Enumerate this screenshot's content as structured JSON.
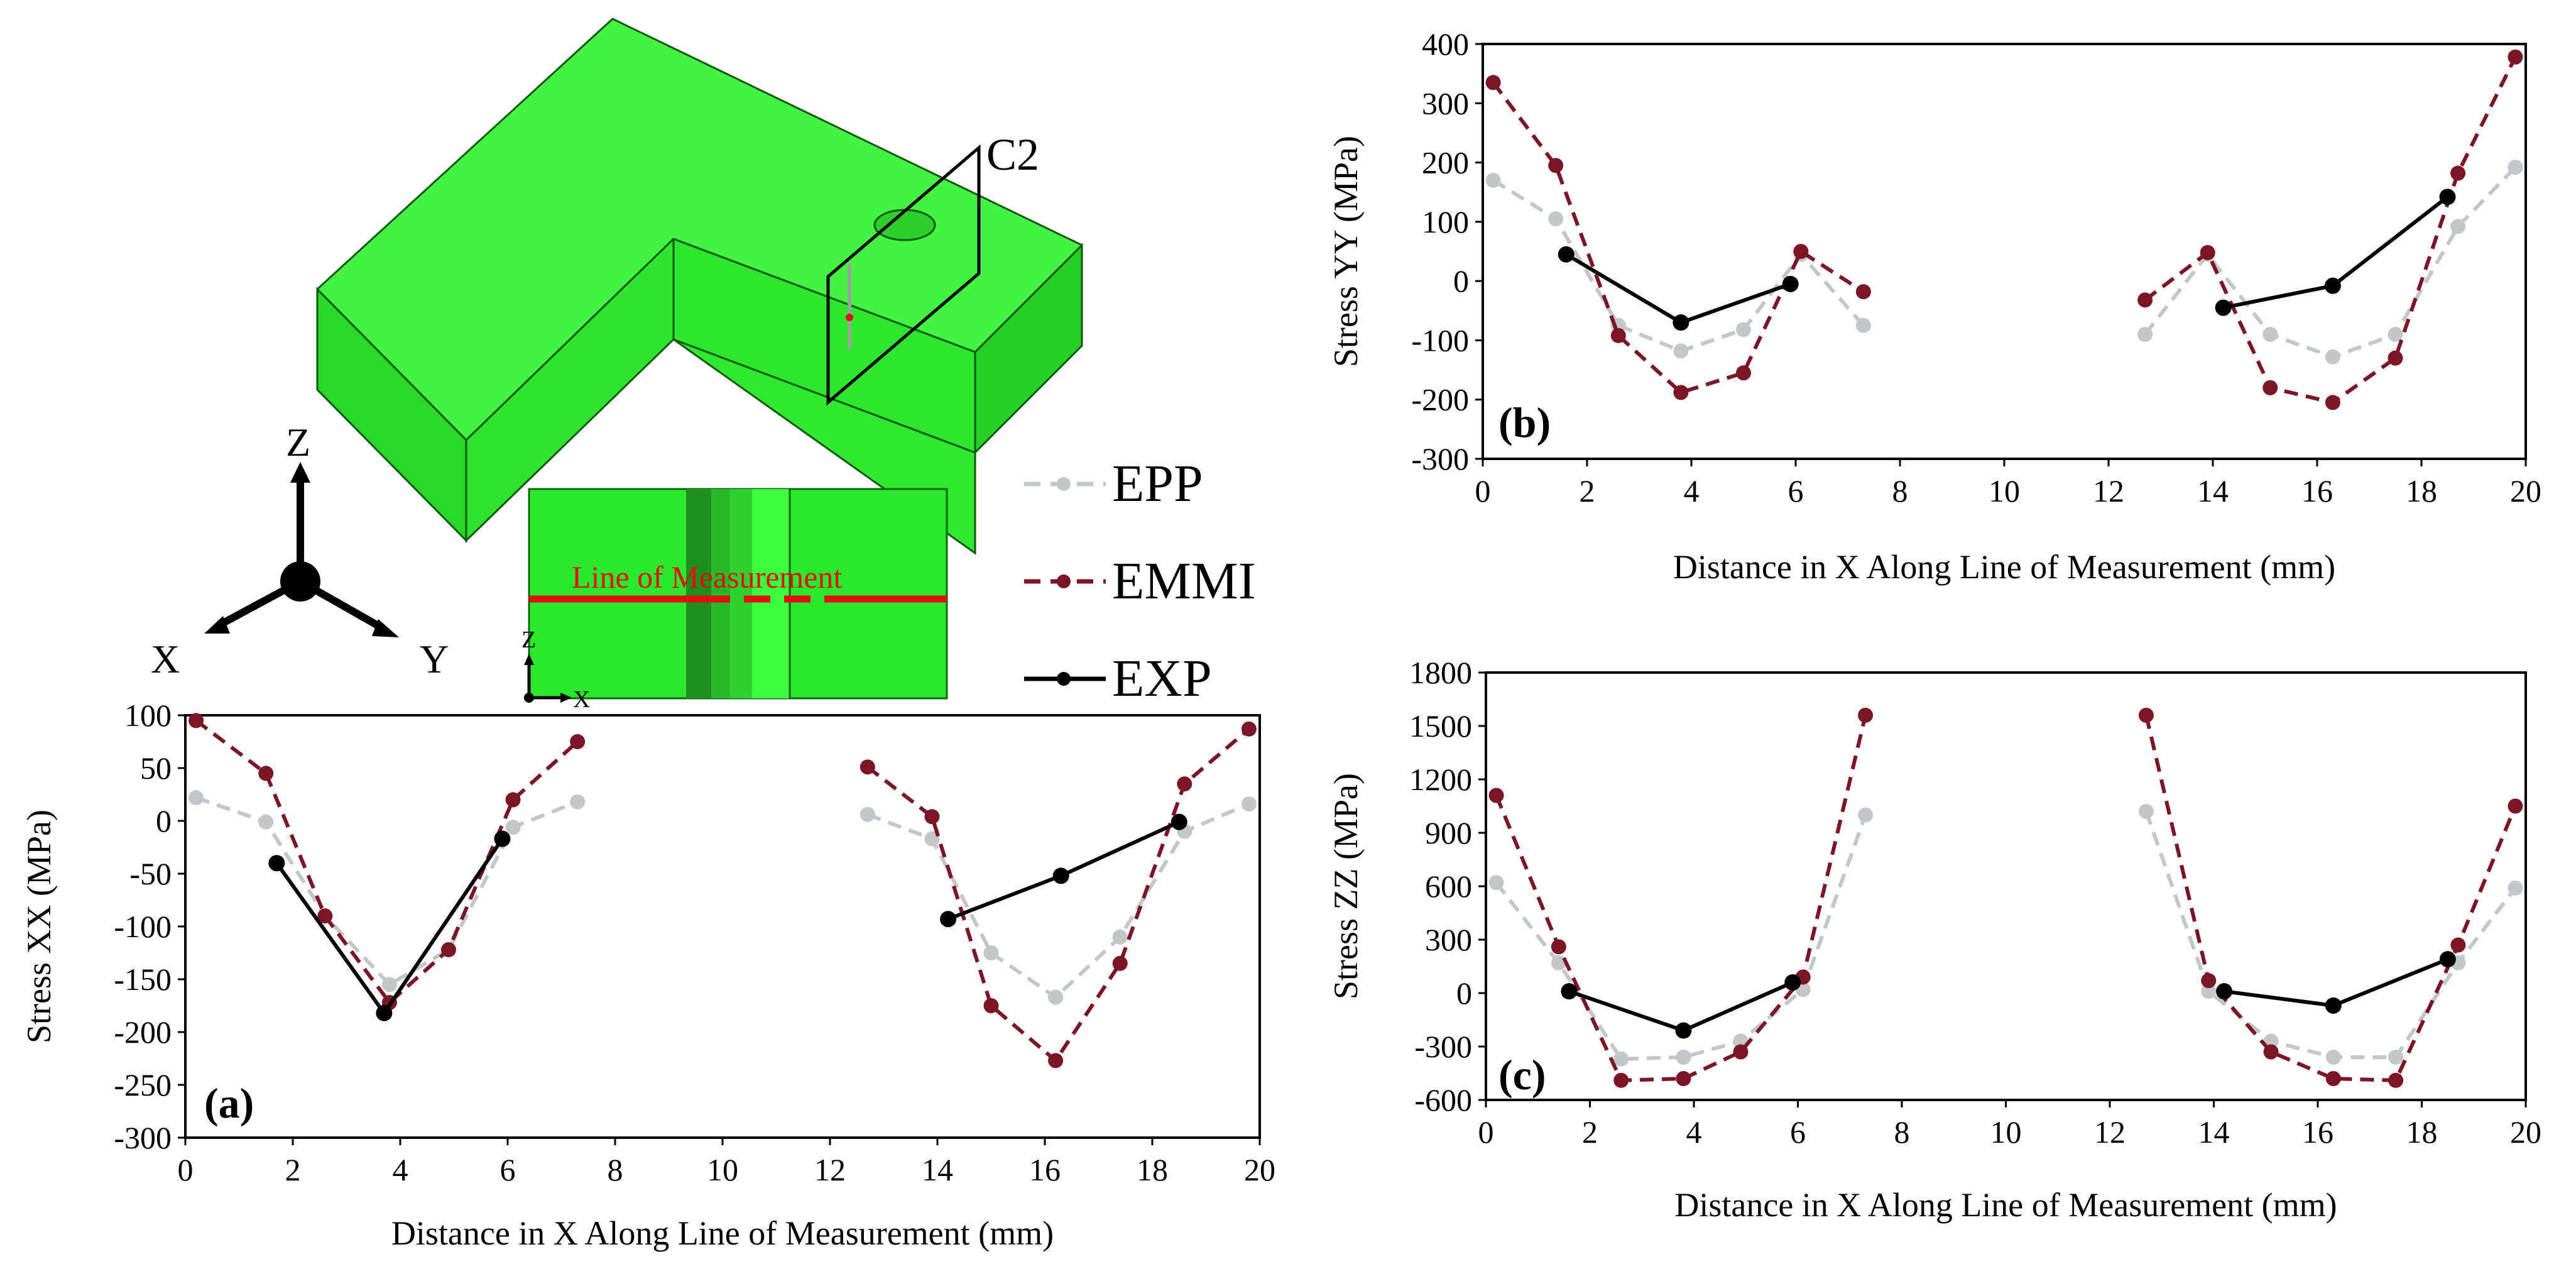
{
  "legend": {
    "items": [
      {
        "label": "EPP",
        "color": "#c3c7c9",
        "dash": true
      },
      {
        "label": "EMMI",
        "color": "#7b1626",
        "dash": true
      },
      {
        "label": "EXP",
        "color": "#000000",
        "dash": false
      }
    ]
  },
  "model": {
    "cut_label": "C2",
    "section_label": "Line of  Measurement",
    "triad_labels": {
      "z": "Z",
      "x": "X",
      "y": "Y"
    },
    "section_axes": {
      "z": "Z",
      "x": "X"
    }
  },
  "chart_data": [
    {
      "type": "line",
      "panel": "(a)",
      "xlabel": "Distance in X Along Line of  Measurement (mm)",
      "ylabel": "Stress XX (MPa)",
      "xlim": [
        0,
        20
      ],
      "ylim": [
        -300,
        100
      ],
      "xticks": [
        0,
        2,
        4,
        6,
        8,
        10,
        12,
        14,
        16,
        18,
        20
      ],
      "yticks": [
        100,
        50,
        0,
        -50,
        -100,
        -150,
        -200,
        -250,
        -300
      ],
      "grid": false,
      "series": [
        {
          "name": "EPP",
          "color": "#c3c7c9",
          "dash": true,
          "segments": [
            [
              [
                0.2,
                22
              ],
              [
                1.5,
                -1
              ],
              [
                2.6,
                -90
              ],
              [
                3.8,
                -155
              ],
              [
                4.9,
                -122
              ],
              [
                6.1,
                -6
              ],
              [
                7.3,
                18
              ]
            ],
            [
              [
                12.7,
                6
              ],
              [
                13.9,
                -17
              ],
              [
                15.0,
                -125
              ],
              [
                16.2,
                -167
              ],
              [
                17.4,
                -110
              ],
              [
                18.6,
                -10
              ],
              [
                19.8,
                16
              ]
            ]
          ]
        },
        {
          "name": "EMMI",
          "color": "#7b1626",
          "dash": true,
          "segments": [
            [
              [
                0.2,
                95
              ],
              [
                1.5,
                45
              ],
              [
                2.6,
                -90
              ],
              [
                3.8,
                -172
              ],
              [
                4.9,
                -122
              ],
              [
                6.1,
                20
              ],
              [
                7.3,
                75
              ]
            ],
            [
              [
                12.7,
                51
              ],
              [
                13.9,
                4
              ],
              [
                15.0,
                -175
              ],
              [
                16.2,
                -227
              ],
              [
                17.4,
                -135
              ],
              [
                18.6,
                35
              ],
              [
                19.8,
                87
              ]
            ]
          ]
        },
        {
          "name": "EXP",
          "color": "#000000",
          "dash": false,
          "segments": [
            [
              [
                1.7,
                -40
              ],
              [
                3.7,
                -182
              ],
              [
                5.9,
                -17
              ]
            ],
            [
              [
                14.2,
                -93
              ],
              [
                16.3,
                -52
              ],
              [
                18.5,
                -1
              ]
            ]
          ]
        }
      ]
    },
    {
      "type": "line",
      "panel": "(b)",
      "xlabel": "Distance in X Along Line of  Measurement (mm)",
      "ylabel": "Stress YY (MPa)",
      "xlim": [
        0,
        20
      ],
      "ylim": [
        -300,
        400
      ],
      "xticks": [
        0,
        2,
        4,
        6,
        8,
        10,
        12,
        14,
        16,
        18,
        20
      ],
      "yticks": [
        400,
        300,
        200,
        100,
        0,
        -100,
        -200,
        -300
      ],
      "grid": false,
      "series": [
        {
          "name": "EPP",
          "color": "#c3c7c9",
          "dash": true,
          "segments": [
            [
              [
                0.2,
                170
              ],
              [
                1.4,
                105
              ],
              [
                2.6,
                -75
              ],
              [
                3.8,
                -118
              ],
              [
                5.0,
                -82
              ],
              [
                6.1,
                45
              ],
              [
                7.3,
                -75
              ]
            ],
            [
              [
                12.7,
                -90
              ],
              [
                13.9,
                45
              ],
              [
                15.1,
                -90
              ],
              [
                16.3,
                -128
              ],
              [
                17.5,
                -90
              ],
              [
                18.7,
                92
              ],
              [
                19.8,
                192
              ]
            ]
          ]
        },
        {
          "name": "EMMI",
          "color": "#7b1626",
          "dash": true,
          "segments": [
            [
              [
                0.2,
                335
              ],
              [
                1.4,
                195
              ],
              [
                2.6,
                -92
              ],
              [
                3.8,
                -188
              ],
              [
                5.0,
                -155
              ],
              [
                6.1,
                50
              ],
              [
                7.3,
                -18
              ]
            ],
            [
              [
                12.7,
                -32
              ],
              [
                13.9,
                48
              ],
              [
                15.1,
                -180
              ],
              [
                16.3,
                -205
              ],
              [
                17.5,
                -130
              ],
              [
                18.7,
                182
              ],
              [
                19.8,
                378
              ]
            ]
          ]
        },
        {
          "name": "EXP",
          "color": "#000000",
          "dash": false,
          "segments": [
            [
              [
                1.6,
                45
              ],
              [
                3.8,
                -70
              ],
              [
                5.9,
                -5
              ]
            ],
            [
              [
                14.2,
                -45
              ],
              [
                16.3,
                -8
              ],
              [
                18.5,
                142
              ]
            ]
          ]
        }
      ]
    },
    {
      "type": "line",
      "panel": "(c)",
      "xlabel": "Distance in X Along Line of  Measurement (mm)",
      "ylabel": "Stress ZZ (MPa)",
      "xlim": [
        0,
        20
      ],
      "ylim": [
        -600,
        1800
      ],
      "xticks": [
        0,
        2,
        4,
        6,
        8,
        10,
        12,
        14,
        16,
        18,
        20
      ],
      "yticks": [
        1800,
        1500,
        1200,
        900,
        600,
        300,
        0,
        -300,
        -600
      ],
      "grid": false,
      "series": [
        {
          "name": "EPP",
          "color": "#c3c7c9",
          "dash": true,
          "segments": [
            [
              [
                0.2,
                620
              ],
              [
                1.4,
                170
              ],
              [
                2.6,
                -370
              ],
              [
                3.8,
                -360
              ],
              [
                4.9,
                -270
              ],
              [
                6.1,
                20
              ],
              [
                7.3,
                1000
              ]
            ],
            [
              [
                12.7,
                1020
              ],
              [
                13.9,
                10
              ],
              [
                15.1,
                -270
              ],
              [
                16.3,
                -360
              ],
              [
                17.5,
                -360
              ],
              [
                18.7,
                170
              ],
              [
                19.8,
                590
              ]
            ]
          ]
        },
        {
          "name": "EMMI",
          "color": "#7b1626",
          "dash": true,
          "segments": [
            [
              [
                0.2,
                1110
              ],
              [
                1.4,
                260
              ],
              [
                2.6,
                -490
              ],
              [
                3.8,
                -480
              ],
              [
                4.9,
                -330
              ],
              [
                6.1,
                90
              ],
              [
                7.3,
                1560
              ]
            ],
            [
              [
                12.7,
                1560
              ],
              [
                13.9,
                70
              ],
              [
                15.1,
                -330
              ],
              [
                16.3,
                -480
              ],
              [
                17.5,
                -490
              ],
              [
                18.7,
                270
              ],
              [
                19.8,
                1050
              ]
            ]
          ]
        },
        {
          "name": "EXP",
          "color": "#000000",
          "dash": false,
          "segments": [
            [
              [
                1.6,
                10
              ],
              [
                3.8,
                -210
              ],
              [
                5.9,
                60
              ]
            ],
            [
              [
                14.2,
                10
              ],
              [
                16.3,
                -70
              ],
              [
                18.5,
                190
              ]
            ]
          ]
        }
      ]
    }
  ]
}
